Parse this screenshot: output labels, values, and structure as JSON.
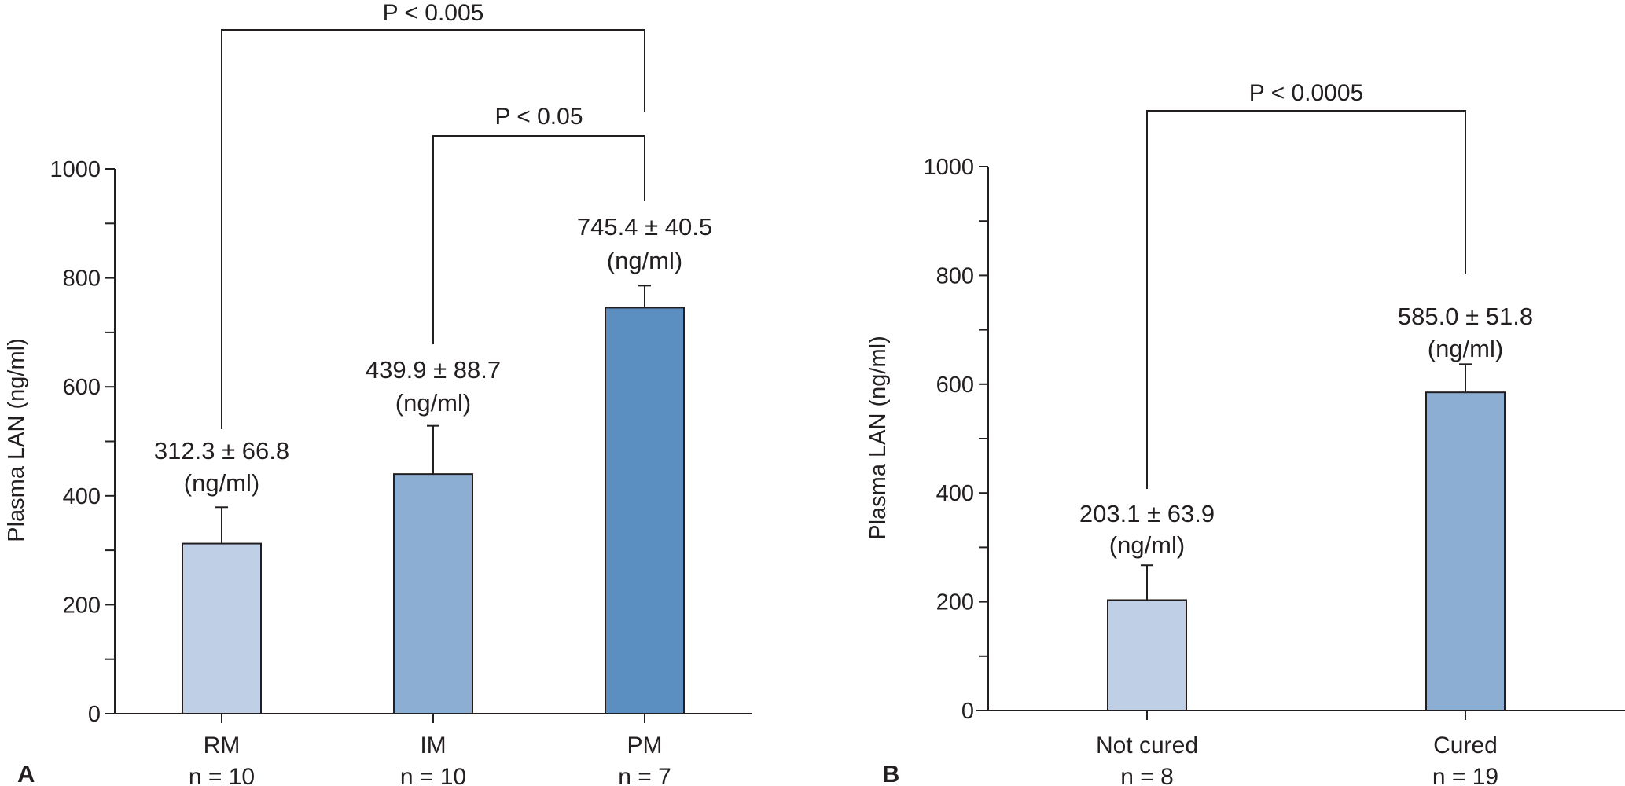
{
  "chart_data": [
    {
      "type": "bar",
      "panel_label": "A",
      "ylabel": "Plasma LAN (ng/ml)",
      "xlabel": "",
      "ylim": [
        0,
        1000
      ],
      "yticks": [
        0,
        200,
        400,
        600,
        800,
        1000
      ],
      "ytick_labels": [
        "0",
        "200",
        "400",
        "600",
        "800",
        "1000"
      ],
      "minor_tick_step": 100,
      "grid": false,
      "categories": [
        "RM",
        "IM",
        "PM"
      ],
      "n_labels": [
        "n = 10",
        "n = 10",
        "n = 7"
      ],
      "values": [
        312.3,
        439.9,
        745.4
      ],
      "errors": [
        66.8,
        88.7,
        40.5
      ],
      "value_labels": [
        "312.3 ± 66.8",
        "439.9 ± 88.7",
        "745.4 ± 40.5"
      ],
      "unit_label": "(ng/ml)",
      "colors": [
        "#bfd0e6",
        "#8caed3",
        "#5b8fc2"
      ],
      "significance": [
        {
          "from": "RM",
          "to": "PM",
          "label": "P < 0.005"
        },
        {
          "from": "IM",
          "to": "PM",
          "label": "P < 0.05"
        }
      ]
    },
    {
      "type": "bar",
      "panel_label": "B",
      "ylabel": "Plasma LAN (ng/ml)",
      "xlabel": "",
      "ylim": [
        0,
        1000
      ],
      "yticks": [
        0,
        200,
        400,
        600,
        800,
        1000
      ],
      "ytick_labels": [
        "0",
        "200",
        "400",
        "600",
        "800",
        "1000"
      ],
      "minor_tick_step": 100,
      "grid": false,
      "categories": [
        "Not cured",
        "Cured"
      ],
      "n_labels": [
        "n = 8",
        "n = 19"
      ],
      "values": [
        203.1,
        585.0
      ],
      "errors": [
        63.9,
        51.8
      ],
      "value_labels": [
        "203.1 ± 63.9",
        "585.0 ± 51.8"
      ],
      "unit_label": "(ng/ml)",
      "colors": [
        "#bfd0e6",
        "#8caed3"
      ],
      "significance": [
        {
          "from": "Not cured",
          "to": "Cured",
          "label": "P < 0.0005"
        }
      ]
    }
  ]
}
